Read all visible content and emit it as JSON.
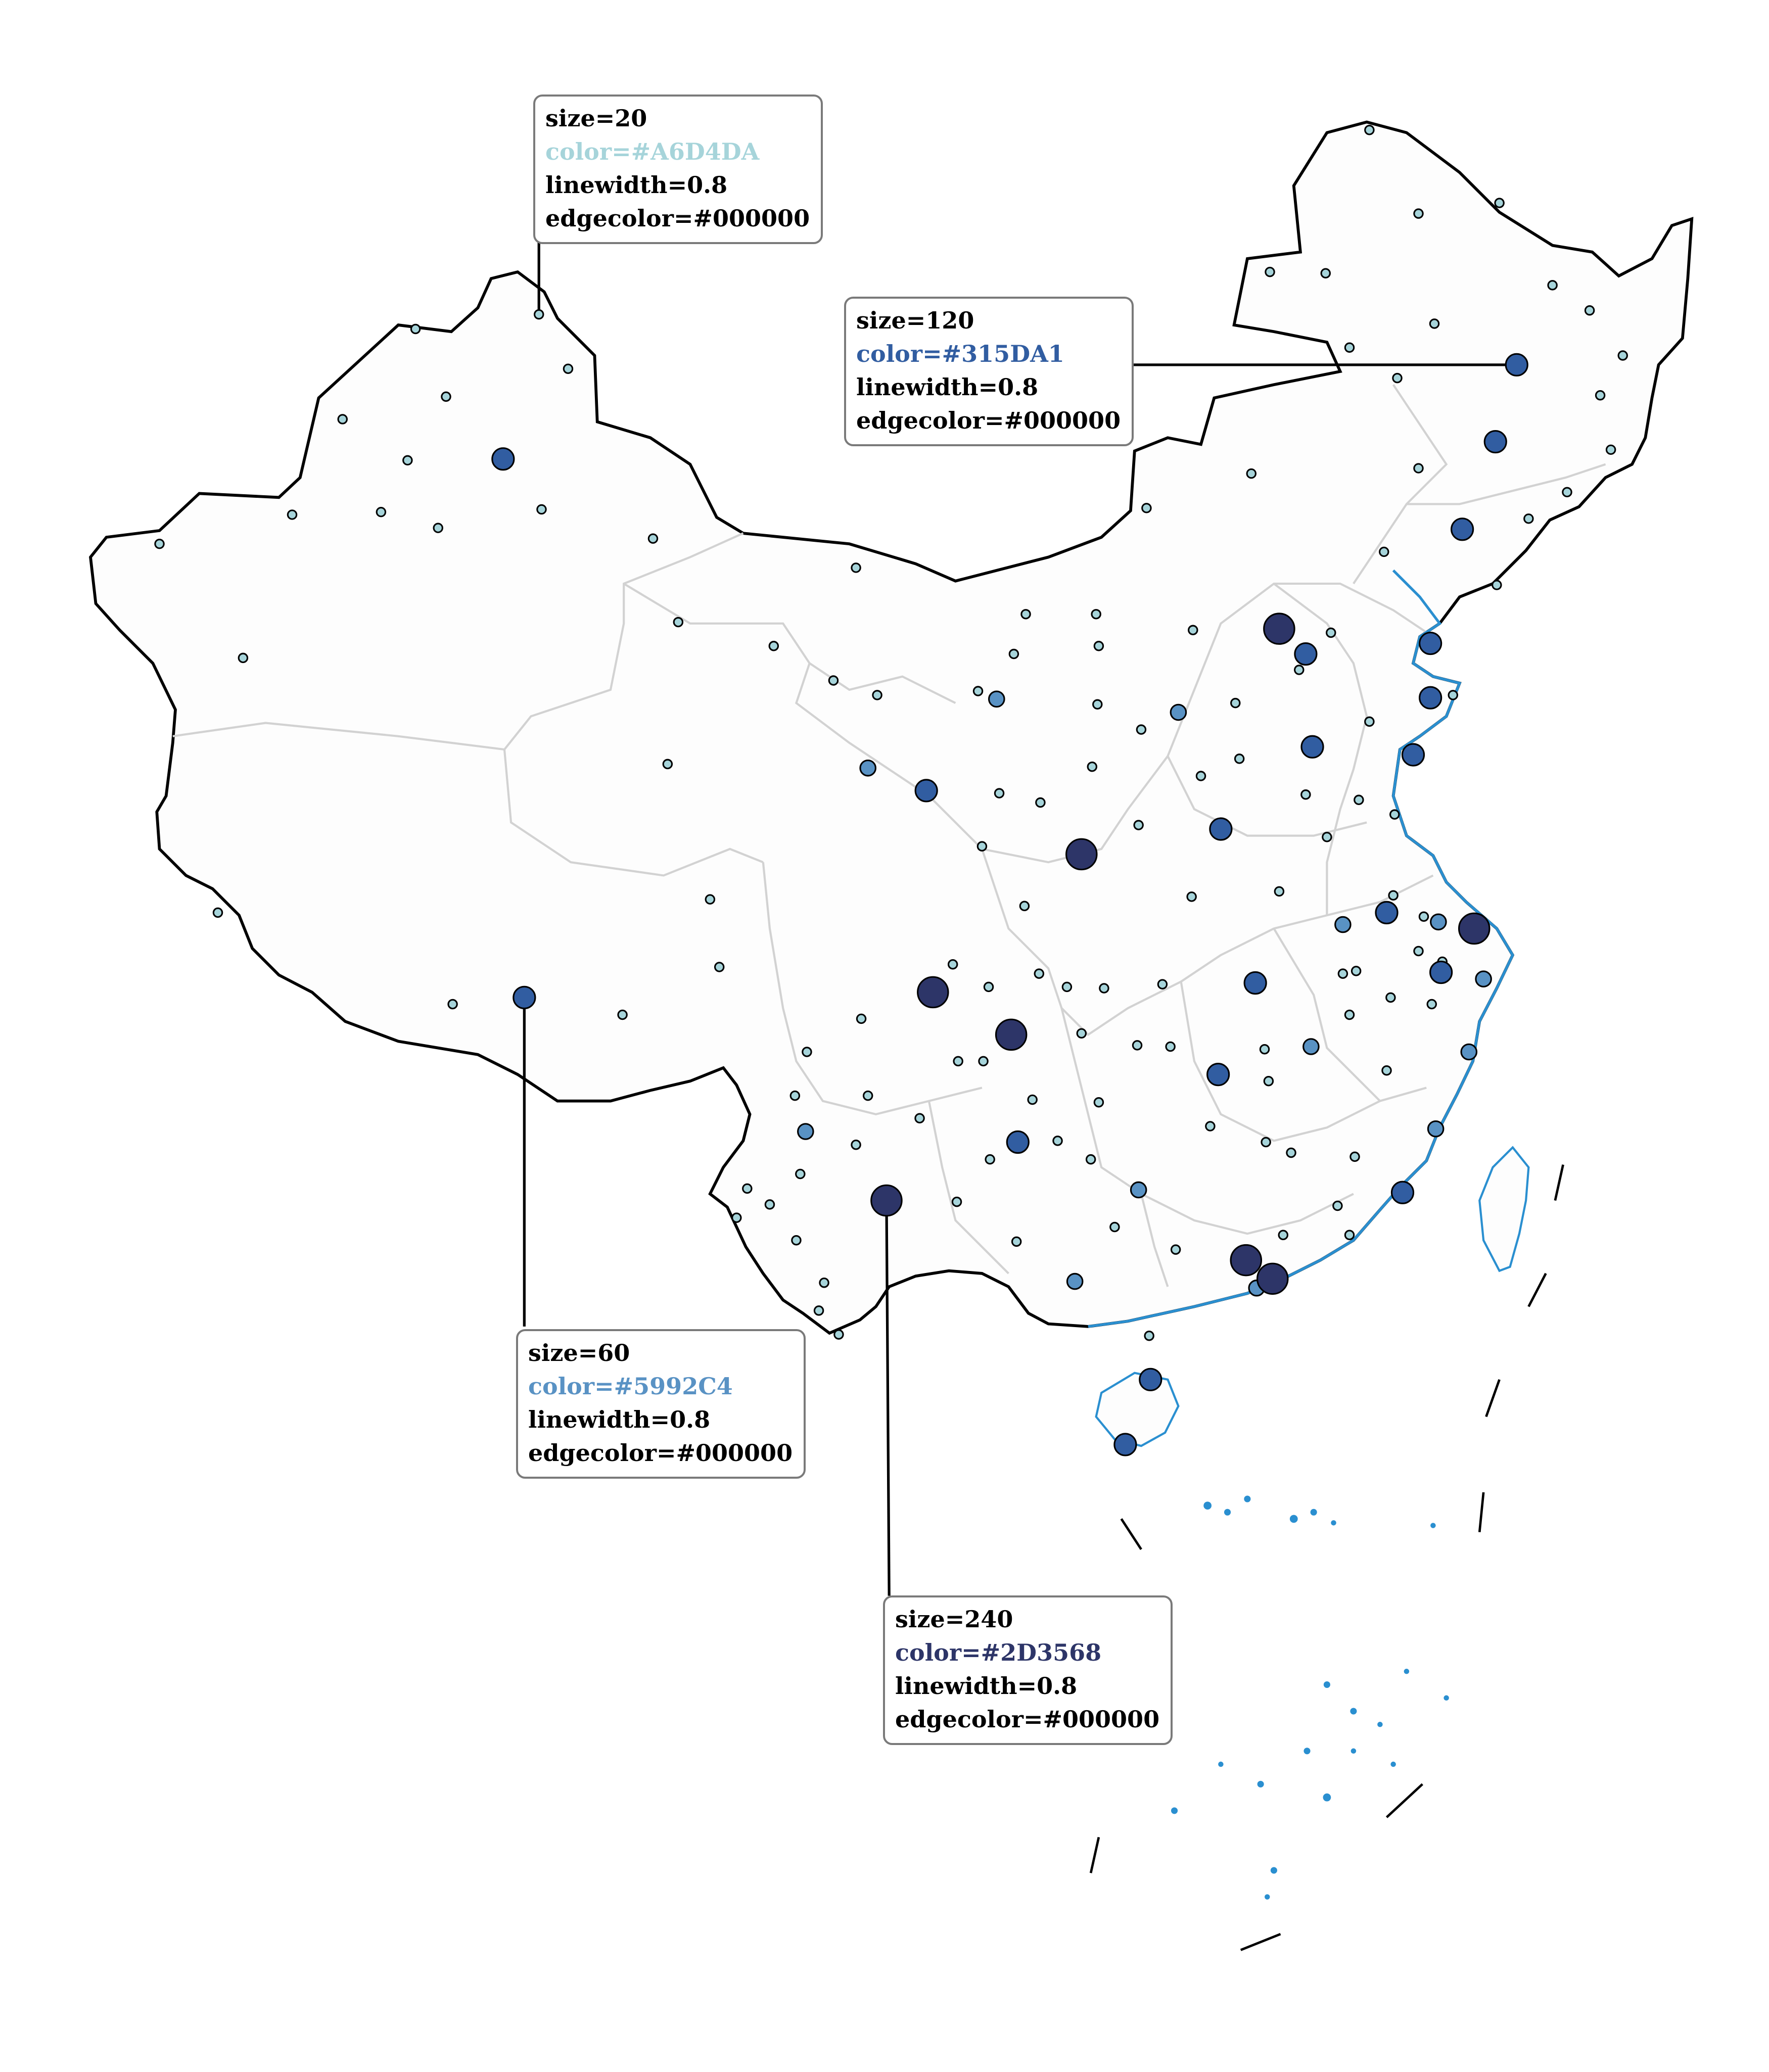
{
  "colors": {
    "land_fill": "#fdfdfd",
    "border": "#000000",
    "province_border": "#d2d2d2",
    "coastline": "#2a8fd0",
    "marker_edge": "#000000"
  },
  "legend": [
    {
      "size_label": "size=20",
      "color_label": "color=#A6D4DA",
      "color": "#A6D4DA",
      "linewidth_label": "linewidth=0.8",
      "edgecolor_label": "edgecolor=#000000"
    },
    {
      "size_label": "size=120",
      "color_label": "color=#315DA1",
      "color": "#315DA1",
      "linewidth_label": "linewidth=0.8",
      "edgecolor_label": "edgecolor=#000000"
    },
    {
      "size_label": "size=60",
      "color_label": "color=#5992C4",
      "color": "#5992C4",
      "linewidth_label": "linewidth=0.8",
      "edgecolor_label": "edgecolor=#000000"
    },
    {
      "size_label": "size=240",
      "color_label": "color=#2D3568",
      "color": "#2D3568",
      "linewidth_label": "linewidth=0.8",
      "edgecolor_label": "edgecolor=#000000"
    }
  ],
  "marker_classes": {
    "s20": {
      "size": 20,
      "color": "#A6D4DA"
    },
    "s60": {
      "size": 60,
      "color": "#5992C4"
    },
    "s120": {
      "size": 120,
      "color": "#315DA1"
    },
    "s240": {
      "size": 240,
      "color": "#2D3568"
    }
  }
}
